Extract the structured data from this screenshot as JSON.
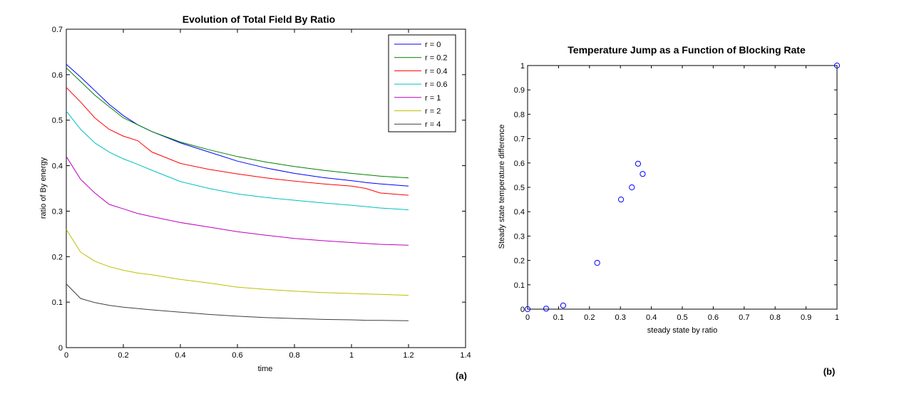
{
  "panels": {
    "a": "(a)",
    "b": "(b)"
  },
  "chart_data": [
    {
      "type": "line",
      "title": "Evolution of Total Field By Ratio",
      "xlabel": "time",
      "ylabel": "ratio of By energy",
      "xlim": [
        0,
        1.4
      ],
      "ylim": [
        0,
        0.7
      ],
      "xticks": [
        "0",
        "0.2",
        "0.4",
        "0.6",
        "0.8",
        "1",
        "1.2",
        "1.4"
      ],
      "yticks": [
        "0",
        "0.1",
        "0.2",
        "0.3",
        "0.4",
        "0.5",
        "0.6",
        "0.7"
      ],
      "grid": false,
      "legend_position": "top-right",
      "x": [
        0,
        0.05,
        0.1,
        0.15,
        0.2,
        0.25,
        0.3,
        0.4,
        0.5,
        0.6,
        0.7,
        0.8,
        0.9,
        1.0,
        1.05,
        1.1,
        1.2
      ],
      "series": [
        {
          "name": "r = 0",
          "color": "#0000ff",
          "values": [
            0.623,
            0.595,
            0.565,
            0.535,
            0.51,
            0.49,
            0.475,
            0.45,
            0.43,
            0.41,
            0.395,
            0.383,
            0.374,
            0.367,
            0.363,
            0.36,
            0.355
          ]
        },
        {
          "name": "r = 0.2",
          "color": "#008000",
          "values": [
            0.615,
            0.585,
            0.555,
            0.53,
            0.505,
            0.49,
            0.475,
            0.452,
            0.435,
            0.42,
            0.408,
            0.398,
            0.39,
            0.383,
            0.38,
            0.377,
            0.373
          ]
        },
        {
          "name": "r = 0.4",
          "color": "#ff0000",
          "values": [
            0.572,
            0.54,
            0.505,
            0.48,
            0.465,
            0.455,
            0.43,
            0.405,
            0.392,
            0.382,
            0.373,
            0.366,
            0.36,
            0.355,
            0.35,
            0.34,
            0.335
          ]
        },
        {
          "name": "r = 0.6",
          "color": "#00bfbf",
          "values": [
            0.52,
            0.48,
            0.45,
            0.43,
            0.415,
            0.403,
            0.39,
            0.365,
            0.35,
            0.338,
            0.33,
            0.324,
            0.318,
            0.313,
            0.31,
            0.307,
            0.303
          ]
        },
        {
          "name": "r = 1",
          "color": "#bf00bf",
          "values": [
            0.42,
            0.37,
            0.34,
            0.315,
            0.305,
            0.295,
            0.288,
            0.275,
            0.265,
            0.255,
            0.247,
            0.24,
            0.235,
            0.231,
            0.229,
            0.227,
            0.225
          ]
        },
        {
          "name": "r = 2",
          "color": "#bfbf00",
          "values": [
            0.26,
            0.21,
            0.19,
            0.178,
            0.17,
            0.164,
            0.16,
            0.15,
            0.142,
            0.133,
            0.128,
            0.124,
            0.121,
            0.119,
            0.118,
            0.117,
            0.115
          ]
        },
        {
          "name": "r = 4",
          "color": "#3f3f3f",
          "values": [
            0.14,
            0.108,
            0.099,
            0.093,
            0.089,
            0.086,
            0.083,
            0.078,
            0.073,
            0.069,
            0.066,
            0.064,
            0.062,
            0.061,
            0.06,
            0.06,
            0.059
          ]
        }
      ]
    },
    {
      "type": "scatter",
      "title": "Temperature Jump as a Function of Blocking Rate",
      "xlabel": "steady state by ratio",
      "ylabel": "Steady state temperature difference",
      "xlim": [
        0,
        1
      ],
      "ylim": [
        0,
        1
      ],
      "xticks": [
        "0",
        "0.1",
        "0.2",
        "0.3",
        "0.4",
        "0.5",
        "0.6",
        "0.7",
        "0.8",
        "0.9",
        "1"
      ],
      "yticks": [
        "0",
        "0.1",
        "0.2",
        "0.3",
        "0.4",
        "0.5",
        "0.6",
        "0.7",
        "0.8",
        "0.9",
        "1"
      ],
      "grid": false,
      "marker_color": "#0000ff",
      "x": [
        0,
        0.06,
        0.115,
        0.225,
        0.302,
        0.337,
        0.357,
        0.372,
        1.0
      ],
      "y": [
        0,
        0.002,
        0.015,
        0.19,
        0.45,
        0.5,
        0.597,
        0.555,
        1.0
      ]
    }
  ]
}
